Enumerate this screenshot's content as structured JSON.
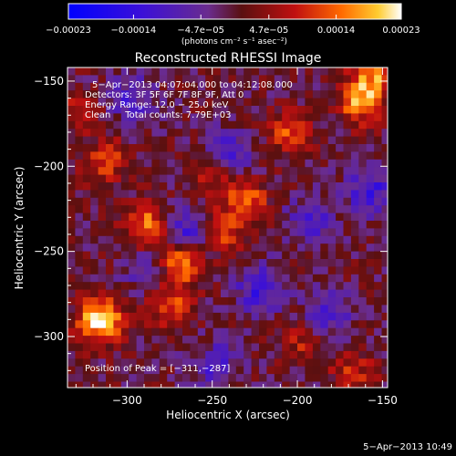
{
  "chart_data": {
    "type": "heatmap",
    "title": "Reconstructed RHESSI Image",
    "xlabel": "Heliocentric X (arcsec)",
    "ylabel": "Heliocentric Y (arcsec)",
    "xlim": [
      -335,
      -147
    ],
    "ylim": [
      -330,
      -142
    ],
    "x_ticks": [
      -300,
      -250,
      -200,
      -150
    ],
    "y_ticks": [
      -150,
      -200,
      -250,
      -300
    ],
    "x_tick_labels": [
      "−300",
      "−250",
      "−200",
      "−150"
    ],
    "y_tick_labels": [
      "−150",
      "−200",
      "−250",
      "−300"
    ],
    "colorbar": {
      "range": [
        -0.00023,
        0.00023
      ],
      "ticks": [
        -0.00023,
        -0.00014,
        -4.7e-05,
        4.7e-05,
        0.00014,
        0.00023
      ],
      "tick_labels": [
        "−0.00023",
        "−0.00014",
        "−4.7e−05",
        "4.7e−05",
        "0.00014",
        "0.00023"
      ],
      "unit_label": "(photons cm⁻² s⁻¹ asec⁻²)"
    },
    "info_lines": [
      "5−Apr−2013 04:07:04.000 to 04:12:08.000",
      "Detectors: 3F 5F 6F 7F 8F 9F, Att 0",
      "Energy Range: 12.0 − 25.0 keV",
      "Clean     Total counts: 7.79E+03"
    ],
    "peak_label": "Position of Peak = [−311,−287]",
    "peak": [
      -311,
      -287
    ],
    "bright_sources": [
      {
        "x": -318,
        "y": -288,
        "value": 0.00023
      },
      {
        "x": -272,
        "y": -254,
        "value": 0.0002
      },
      {
        "x": -290,
        "y": -233,
        "value": 0.00016
      },
      {
        "x": -278,
        "y": -278,
        "value": 0.00012
      },
      {
        "x": -248,
        "y": -236,
        "value": 0.00013
      },
      {
        "x": -232,
        "y": -218,
        "value": 0.00013
      },
      {
        "x": -166,
        "y": -160,
        "value": 0.00016
      },
      {
        "x": -157,
        "y": -145,
        "value": 0.00014
      },
      {
        "x": -208,
        "y": -178,
        "value": 0.00011
      },
      {
        "x": -253,
        "y": -202,
        "value": 0.0001
      },
      {
        "x": -315,
        "y": -195,
        "value": 0.00011
      },
      {
        "x": -170,
        "y": -318,
        "value": 9e-05
      },
      {
        "x": -200,
        "y": -300,
        "value": 8e-05
      },
      {
        "x": -330,
        "y": -165,
        "value": 7e-05
      }
    ],
    "dark_sources": [
      {
        "x": -265,
        "y": -237,
        "value": -0.00014
      },
      {
        "x": -243,
        "y": -190,
        "value": -0.00011
      },
      {
        "x": -224,
        "y": -270,
        "value": -0.00012
      },
      {
        "x": -288,
        "y": -258,
        "value": -0.0001
      },
      {
        "x": -160,
        "y": -212,
        "value": -0.00012
      },
      {
        "x": -195,
        "y": -230,
        "value": -0.0001
      },
      {
        "x": -300,
        "y": -158,
        "value": -9e-05
      },
      {
        "x": -185,
        "y": -285,
        "value": -0.0001
      },
      {
        "x": -250,
        "y": -315,
        "value": -0.0001
      }
    ]
  },
  "footer": {
    "timestamp": "5−Apr−2013 10:49"
  }
}
